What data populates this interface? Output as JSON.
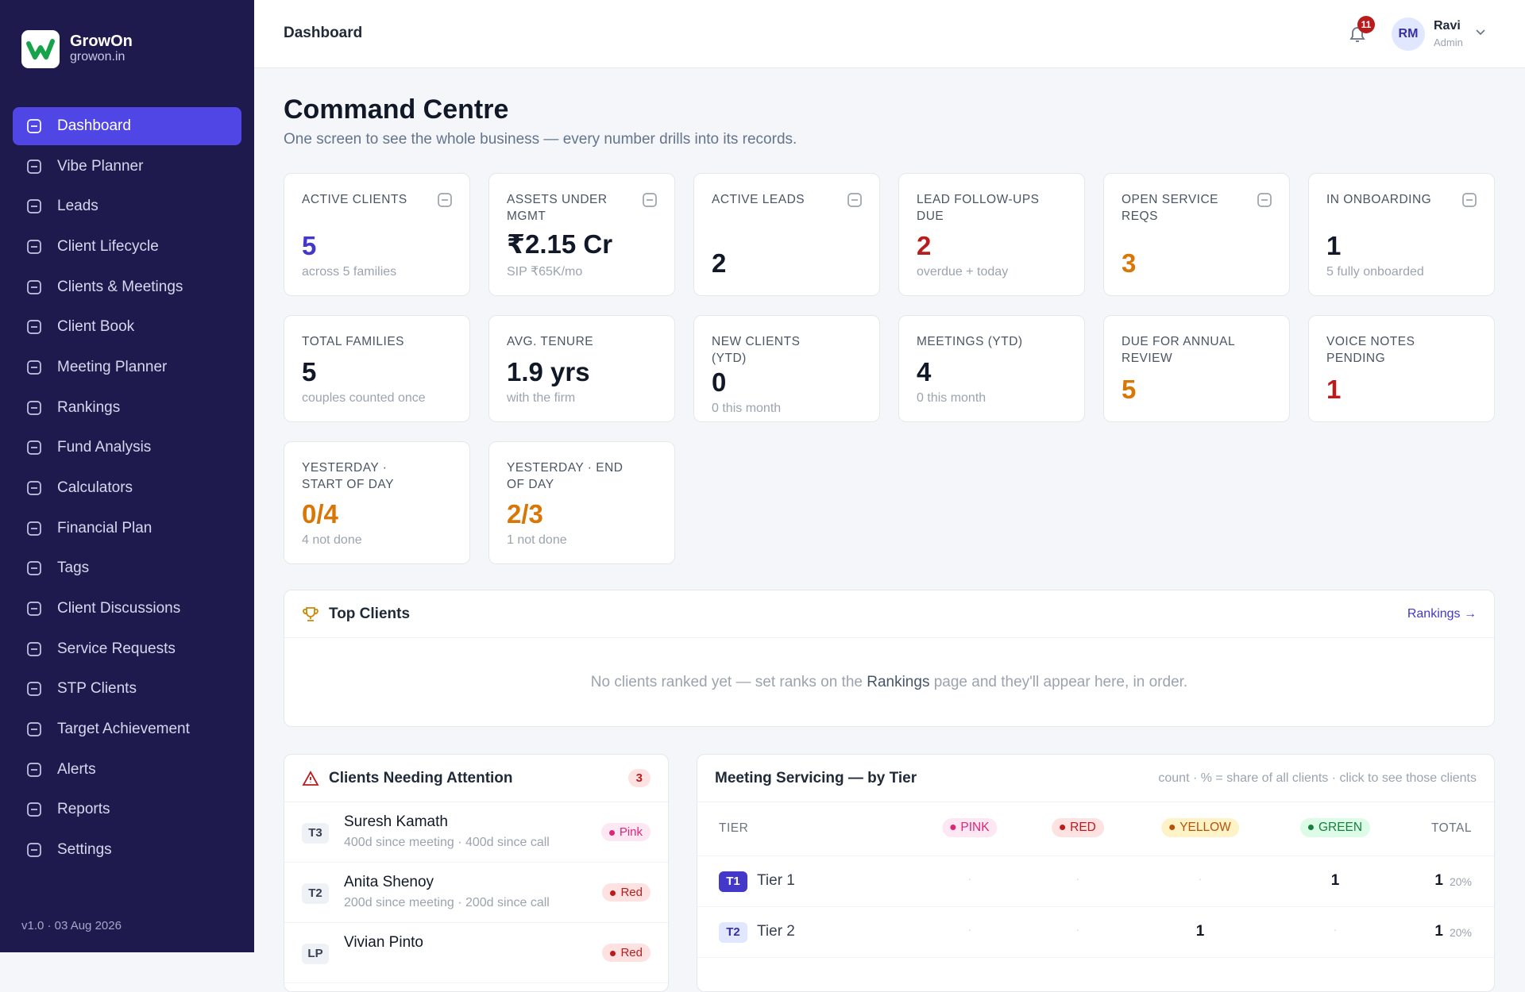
{
  "brand": {
    "name": "GrowOn",
    "domain": "growon.in"
  },
  "nav": [
    "Dashboard",
    "Vibe Planner",
    "Leads",
    "Client Lifecycle",
    "Clients & Meetings",
    "Client Book",
    "Meeting Planner",
    "Rankings",
    "Fund Analysis",
    "Calculators",
    "Financial Plan",
    "Tags",
    "Client Discussions",
    "Service Requests",
    "STP Clients",
    "Target Achievement",
    "Alerts",
    "Reports",
    "Settings"
  ],
  "version": "v1.0 · 03 Aug 2026",
  "header": {
    "title": "Dashboard",
    "notifications": 11,
    "user": {
      "initials": "RM",
      "name": "Ravi",
      "role": "Admin"
    }
  },
  "page": {
    "title": "Command Centre",
    "subtitle": "One screen to see the whole business — every number drills into its records."
  },
  "kpis": [
    {
      "label": "ACTIVE CLIENTS",
      "value": 5,
      "note": "across 5 families",
      "color": "#4338ca"
    },
    {
      "label": "ASSETS UNDER MGMT",
      "value": "₹2.15 Cr",
      "note": "SIP ₹65K/mo",
      "color": "#111827"
    },
    {
      "label": "ACTIVE LEADS",
      "value": 2,
      "color": "#111827"
    },
    {
      "label": "LEAD FOLLOW-UPS DUE",
      "value": 2,
      "note": "overdue + today",
      "color": "#b91c1c"
    },
    {
      "label": "OPEN SERVICE REQS",
      "value": 3,
      "color": "#d97706"
    },
    {
      "label": "IN ONBOARDING",
      "value": 1,
      "note": "5 fully onboarded",
      "color": "#111827"
    },
    {
      "label": "TOTAL FAMILIES",
      "value": 5,
      "note": "couples counted once",
      "color": "#111827"
    },
    {
      "label": "AVG. TENURE",
      "value": "1.9 yrs",
      "note": "with the firm",
      "color": "#111827"
    },
    {
      "label": "NEW CLIENTS (YTD)",
      "value": 0,
      "note": "0 this month",
      "color": "#111827"
    },
    {
      "label": "MEETINGS (YTD)",
      "value": 4,
      "note": "0 this month",
      "color": "#111827"
    },
    {
      "label": "DUE FOR ANNUAL REVIEW",
      "value": 5,
      "color": "#d97706"
    },
    {
      "label": "VOICE NOTES PENDING",
      "value": 1,
      "color": "#b91c1c"
    },
    {
      "label": "YESTERDAY · START OF DAY",
      "value": "0/4",
      "note": "4 not done",
      "color": "#d97706"
    },
    {
      "label": "YESTERDAY · END OF DAY",
      "value": "2/3",
      "note": "1 not done",
      "color": "#d97706"
    }
  ],
  "top_clients": {
    "title": "Top Clients",
    "link": "Rankings →",
    "empty_before": "No clients ranked yet — set ranks on the ",
    "empty_link": "Rankings",
    "empty_after": " page and they'll appear here, in order."
  },
  "attention": {
    "title": "Clients Needing Attention",
    "count": 3,
    "rows": [
      {
        "tier": "T3",
        "name": "Suresh Kamath",
        "detail": "400d since meeting · 400d since call",
        "tag": {
          "label": "Pink",
          "color": "#db2777",
          "bg": "#fce7f3"
        }
      },
      {
        "tier": "T2",
        "name": "Anita Shenoy",
        "detail": "200d since meeting · 200d since call",
        "tag": {
          "label": "Red",
          "color": "#b91c1c",
          "bg": "#fee2e2"
        }
      },
      {
        "tier": "LP",
        "name": "Vivian Pinto",
        "tag": {
          "label": "Red",
          "color": "#b91c1c",
          "bg": "#fee2e2"
        }
      }
    ]
  },
  "servicing": {
    "title": "Meeting Servicing — by Tier",
    "note": "count · % = share of all clients · click to see those clients",
    "columns": [
      {
        "label": "TIER"
      },
      {
        "label": "PINK",
        "color": "#db2777",
        "bg": "#fce7f3"
      },
      {
        "label": "RED",
        "color": "#b91c1c",
        "bg": "#fee2e2"
      },
      {
        "label": "YELLOW",
        "color": "#b45309",
        "bg": "#fef3c7"
      },
      {
        "label": "GREEN",
        "color": "#15803d",
        "bg": "#dcfce7"
      },
      {
        "label": "TOTAL"
      }
    ],
    "rows": [
      {
        "tier": "T1",
        "name": "Tier 1",
        "cells": [
          "·",
          "·",
          "·",
          1
        ],
        "total": 1,
        "share": "20%"
      },
      {
        "tier": "T2",
        "name": "Tier 2",
        "cells": [
          "·",
          "·",
          1,
          "·"
        ],
        "total": 1,
        "share": "20%"
      }
    ]
  }
}
